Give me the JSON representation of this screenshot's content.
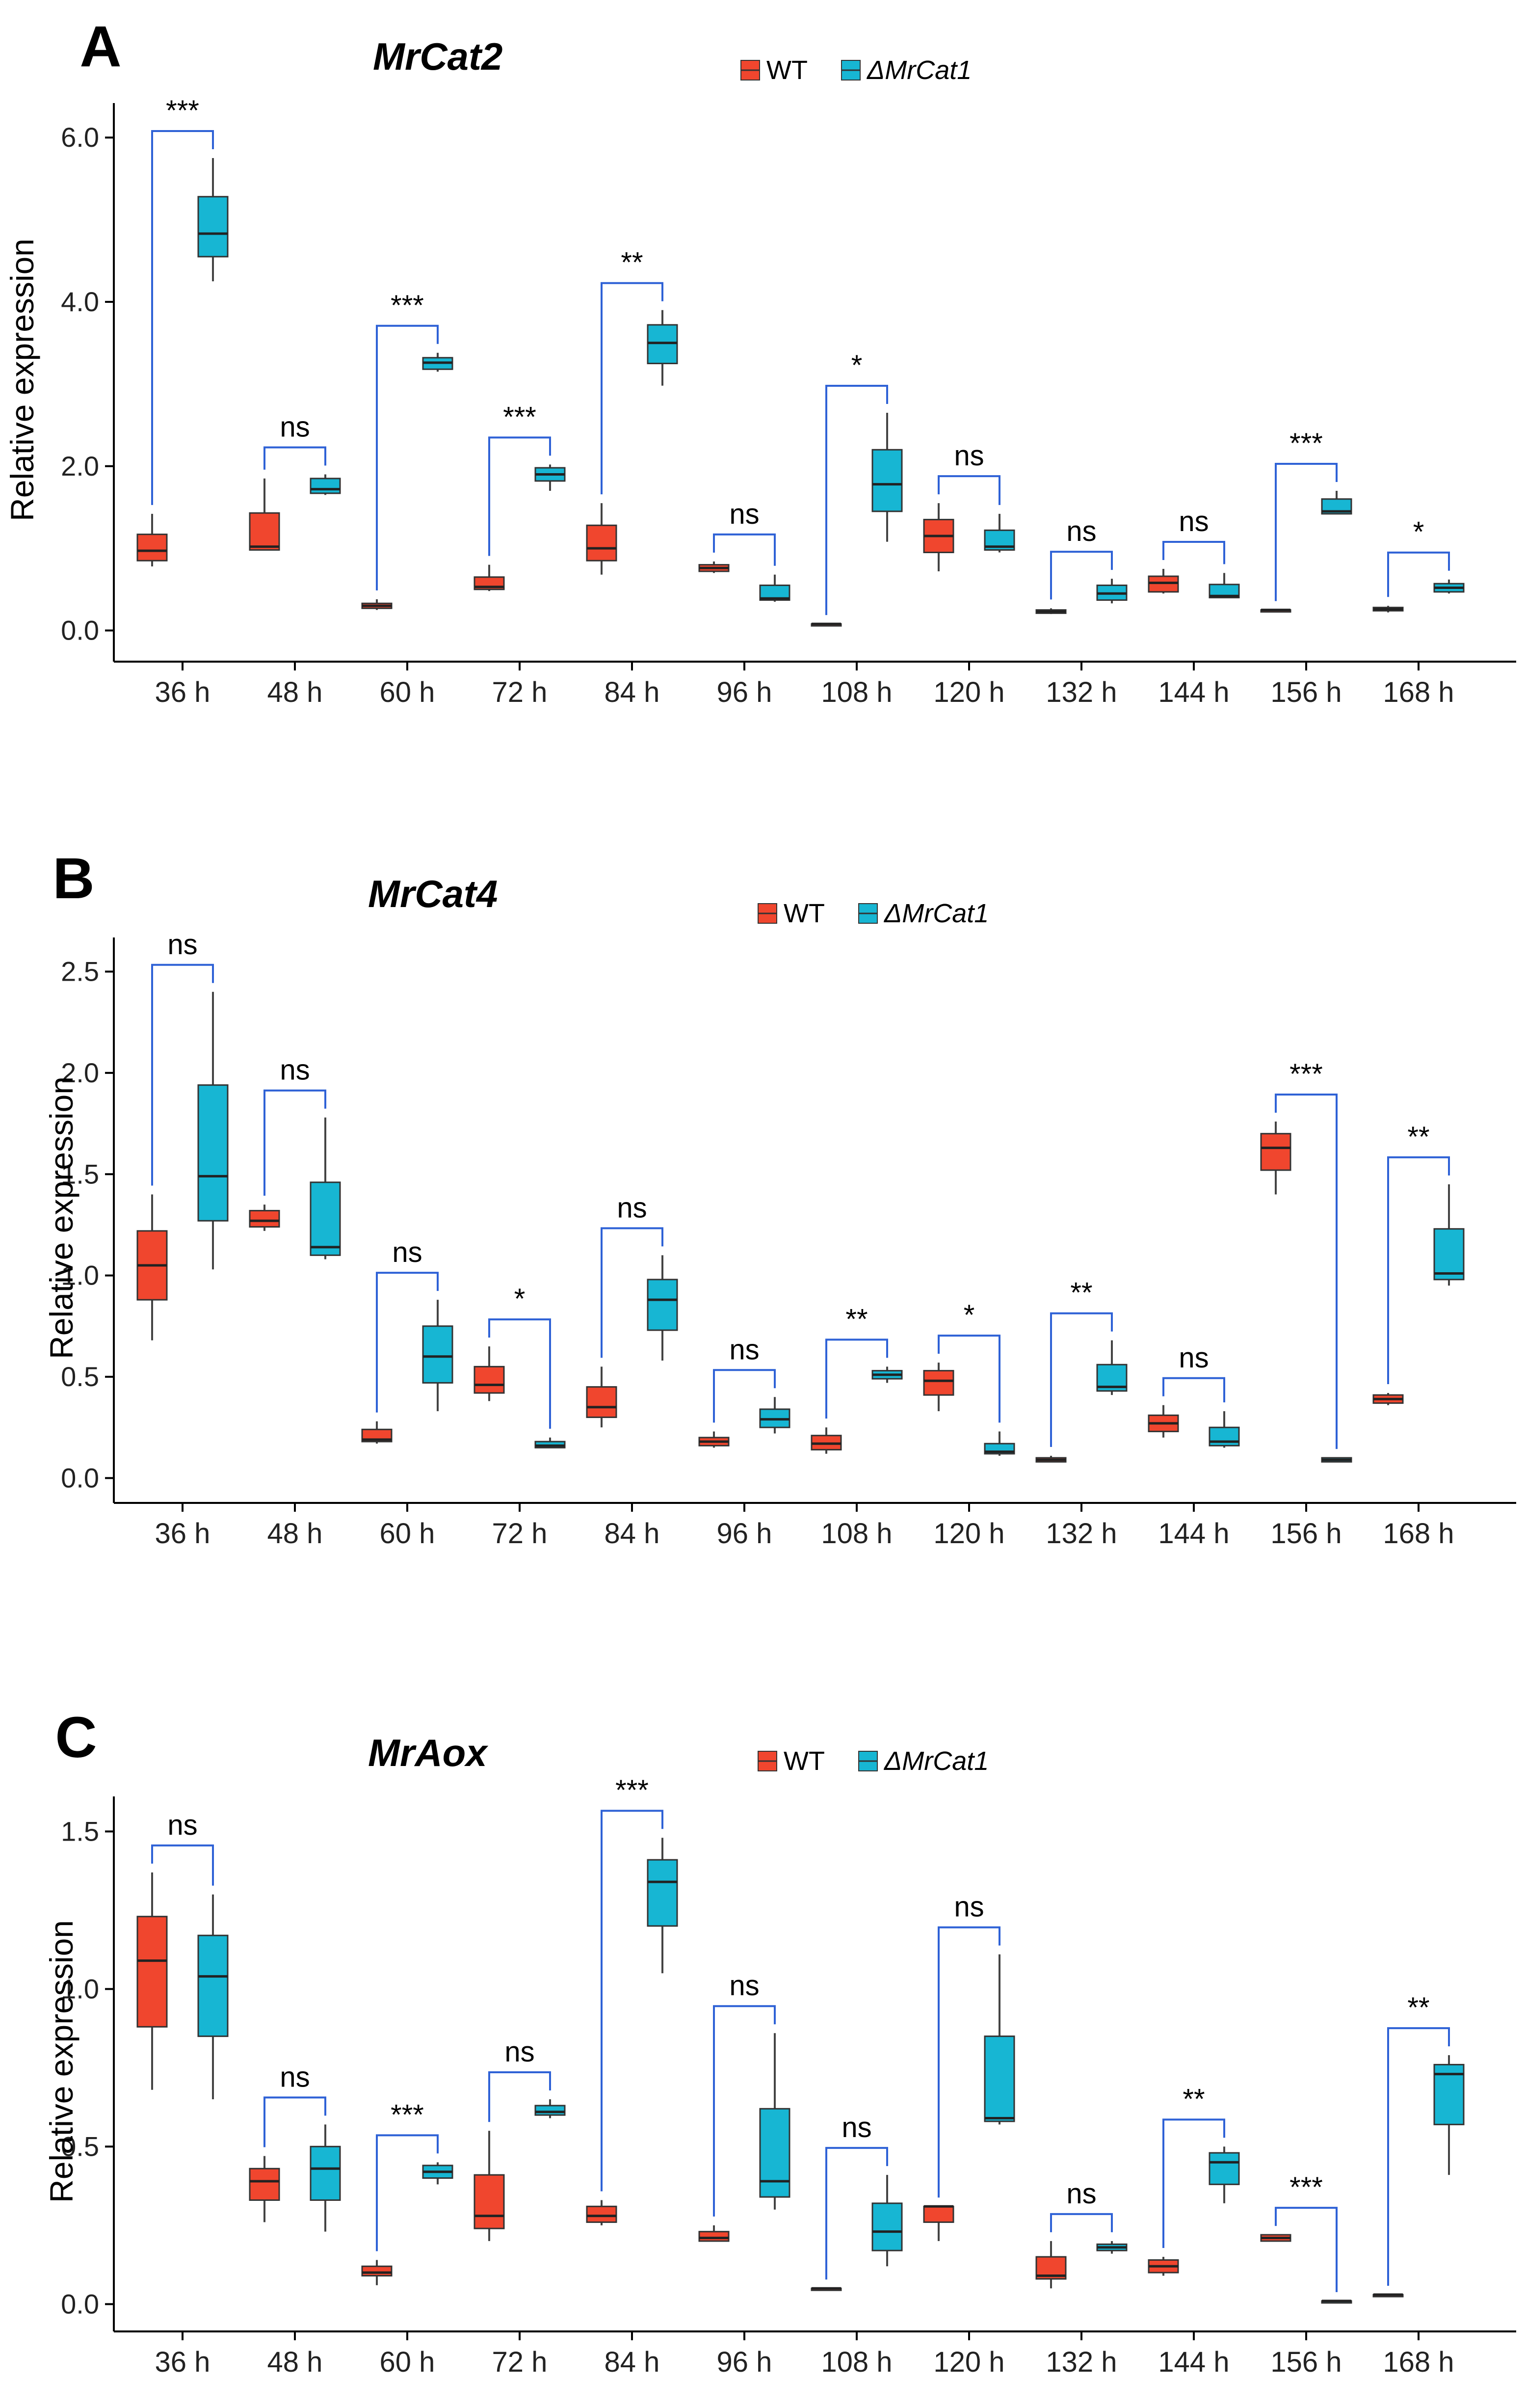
{
  "legend_labels": [
    "WT",
    "ΔMrCat1"
  ],
  "colors": {
    "wt": "#f0462e",
    "mut": "#17b6d3",
    "bracket": "#2f62d6",
    "axis": "#000000"
  },
  "chart_data": [
    {
      "type": "boxplot",
      "panel": "A",
      "title": "MrCat2",
      "xlabel": "",
      "ylabel": "Relative expression",
      "ylim": [
        -0.2,
        6.3
      ],
      "yticks": [
        0.0,
        2.0,
        4.0,
        6.0
      ],
      "ytick_labels": [
        "0.0",
        "2.0",
        "4.0",
        "6.0"
      ],
      "legend_position": "top-center",
      "categories": [
        "36 h",
        "48 h",
        "60 h",
        "72 h",
        "84 h",
        "96 h",
        "108 h",
        "120 h",
        "132 h",
        "144 h",
        "156 h",
        "168 h"
      ],
      "series": [
        {
          "name": "WT",
          "boxes": [
            {
              "min": 0.78,
              "q1": 0.85,
              "median": 0.97,
              "q3": 1.17,
              "max": 1.42
            },
            {
              "min": 0.98,
              "q1": 0.98,
              "median": 1.02,
              "q3": 1.43,
              "max": 1.85
            },
            {
              "min": 0.25,
              "q1": 0.27,
              "median": 0.3,
              "q3": 0.33,
              "max": 0.38
            },
            {
              "min": 0.48,
              "q1": 0.5,
              "median": 0.53,
              "q3": 0.65,
              "max": 0.8
            },
            {
              "min": 0.68,
              "q1": 0.85,
              "median": 1.0,
              "q3": 1.28,
              "max": 1.55
            },
            {
              "min": 0.7,
              "q1": 0.72,
              "median": 0.76,
              "q3": 0.8,
              "max": 0.84
            },
            {
              "min": 0.08,
              "q1": 0.08,
              "median": 0.08,
              "q3": 0.08,
              "max": 0.08
            },
            {
              "min": 0.72,
              "q1": 0.95,
              "median": 1.15,
              "q3": 1.35,
              "max": 1.55
            },
            {
              "min": 0.2,
              "q1": 0.21,
              "median": 0.23,
              "q3": 0.25,
              "max": 0.27
            },
            {
              "min": 0.45,
              "q1": 0.47,
              "median": 0.58,
              "q3": 0.66,
              "max": 0.75
            },
            {
              "min": 0.25,
              "q1": 0.25,
              "median": 0.25,
              "q3": 0.25,
              "max": 0.25
            },
            {
              "min": 0.22,
              "q1": 0.24,
              "median": 0.26,
              "q3": 0.28,
              "max": 0.3
            }
          ]
        },
        {
          "name": "ΔMrCat1",
          "boxes": [
            {
              "min": 4.25,
              "q1": 4.55,
              "median": 4.83,
              "q3": 5.28,
              "max": 5.75
            },
            {
              "min": 1.65,
              "q1": 1.67,
              "median": 1.72,
              "q3": 1.85,
              "max": 1.9
            },
            {
              "min": 3.15,
              "q1": 3.18,
              "median": 3.26,
              "q3": 3.32,
              "max": 3.38
            },
            {
              "min": 1.7,
              "q1": 1.82,
              "median": 1.9,
              "q3": 1.98,
              "max": 2.02
            },
            {
              "min": 2.98,
              "q1": 3.25,
              "median": 3.5,
              "q3": 3.72,
              "max": 3.9
            },
            {
              "min": 0.35,
              "q1": 0.37,
              "median": 0.39,
              "q3": 0.55,
              "max": 0.68
            },
            {
              "min": 1.08,
              "q1": 1.45,
              "median": 1.78,
              "q3": 2.2,
              "max": 2.65
            },
            {
              "min": 0.95,
              "q1": 0.98,
              "median": 1.02,
              "q3": 1.22,
              "max": 1.42
            },
            {
              "min": 0.33,
              "q1": 0.37,
              "median": 0.45,
              "q3": 0.55,
              "max": 0.63
            },
            {
              "min": 0.4,
              "q1": 0.4,
              "median": 0.42,
              "q3": 0.56,
              "max": 0.7
            },
            {
              "min": 1.42,
              "q1": 1.42,
              "median": 1.45,
              "q3": 1.6,
              "max": 1.7
            },
            {
              "min": 0.45,
              "q1": 0.47,
              "median": 0.52,
              "q3": 0.57,
              "max": 0.62
            }
          ]
        }
      ],
      "significance": [
        "***",
        "ns",
        "***",
        "***",
        "**",
        "ns",
        "*",
        "ns",
        "ns",
        "ns",
        "***",
        "*"
      ]
    },
    {
      "type": "boxplot",
      "panel": "B",
      "title": "MrCat4",
      "xlabel": "",
      "ylabel": "Relative expression",
      "ylim": [
        -0.05,
        2.62
      ],
      "yticks": [
        0.0,
        0.5,
        1.0,
        1.5,
        2.0,
        2.5
      ],
      "ytick_labels": [
        "0.0",
        "0.5",
        "1.0",
        "1.5",
        "2.0",
        "2.5"
      ],
      "legend_position": "top-center",
      "categories": [
        "36 h",
        "48 h",
        "60 h",
        "72 h",
        "84 h",
        "96 h",
        "108 h",
        "120 h",
        "132 h",
        "144 h",
        "156 h",
        "168 h"
      ],
      "series": [
        {
          "name": "WT",
          "boxes": [
            {
              "min": 0.68,
              "q1": 0.88,
              "median": 1.05,
              "q3": 1.22,
              "max": 1.4
            },
            {
              "min": 1.22,
              "q1": 1.24,
              "median": 1.27,
              "q3": 1.32,
              "max": 1.35
            },
            {
              "min": 0.17,
              "q1": 0.18,
              "median": 0.19,
              "q3": 0.24,
              "max": 0.28
            },
            {
              "min": 0.38,
              "q1": 0.42,
              "median": 0.46,
              "q3": 0.55,
              "max": 0.65
            },
            {
              "min": 0.25,
              "q1": 0.3,
              "median": 0.35,
              "q3": 0.45,
              "max": 0.55
            },
            {
              "min": 0.15,
              "q1": 0.16,
              "median": 0.18,
              "q3": 0.2,
              "max": 0.23
            },
            {
              "min": 0.12,
              "q1": 0.14,
              "median": 0.17,
              "q3": 0.21,
              "max": 0.25
            },
            {
              "min": 0.33,
              "q1": 0.41,
              "median": 0.48,
              "q3": 0.53,
              "max": 0.57
            },
            {
              "min": 0.08,
              "q1": 0.08,
              "median": 0.09,
              "q3": 0.1,
              "max": 0.11
            },
            {
              "min": 0.2,
              "q1": 0.23,
              "median": 0.27,
              "q3": 0.31,
              "max": 0.36
            },
            {
              "min": 1.4,
              "q1": 1.52,
              "median": 1.63,
              "q3": 1.7,
              "max": 1.76
            },
            {
              "min": 0.36,
              "q1": 0.37,
              "median": 0.39,
              "q3": 0.41,
              "max": 0.42
            }
          ]
        },
        {
          "name": "ΔMrCat1",
          "boxes": [
            {
              "min": 1.03,
              "q1": 1.27,
              "median": 1.49,
              "q3": 1.94,
              "max": 2.4
            },
            {
              "min": 1.08,
              "q1": 1.1,
              "median": 1.14,
              "q3": 1.46,
              "max": 1.78
            },
            {
              "min": 0.33,
              "q1": 0.47,
              "median": 0.6,
              "q3": 0.75,
              "max": 0.88
            },
            {
              "min": 0.15,
              "q1": 0.15,
              "median": 0.16,
              "q3": 0.18,
              "max": 0.2
            },
            {
              "min": 0.58,
              "q1": 0.73,
              "median": 0.88,
              "q3": 0.98,
              "max": 1.1
            },
            {
              "min": 0.22,
              "q1": 0.25,
              "median": 0.29,
              "q3": 0.34,
              "max": 0.4
            },
            {
              "min": 0.47,
              "q1": 0.49,
              "median": 0.51,
              "q3": 0.53,
              "max": 0.55
            },
            {
              "min": 0.11,
              "q1": 0.12,
              "median": 0.13,
              "q3": 0.17,
              "max": 0.23
            },
            {
              "min": 0.41,
              "q1": 0.43,
              "median": 0.45,
              "q3": 0.56,
              "max": 0.68
            },
            {
              "min": 0.15,
              "q1": 0.16,
              "median": 0.18,
              "q3": 0.25,
              "max": 0.33
            },
            {
              "min": 0.08,
              "q1": 0.08,
              "median": 0.09,
              "q3": 0.1,
              "max": 0.1
            },
            {
              "min": 0.95,
              "q1": 0.98,
              "median": 1.01,
              "q3": 1.23,
              "max": 1.45
            }
          ]
        }
      ],
      "significance": [
        "ns",
        "ns",
        "ns",
        "*",
        "ns",
        "ns",
        "**",
        "*",
        "**",
        "ns",
        "***",
        "**"
      ]
    },
    {
      "type": "boxplot",
      "panel": "C",
      "title": "MrAox",
      "xlabel": "",
      "ylabel": "Relative expression",
      "ylim": [
        -0.04,
        1.58
      ],
      "yticks": [
        0.0,
        0.5,
        1.0,
        1.5
      ],
      "ytick_labels": [
        "0.0",
        "0.5",
        "1.0",
        "1.5"
      ],
      "legend_position": "top-center",
      "categories": [
        "36 h",
        "48 h",
        "60 h",
        "72 h",
        "84 h",
        "96 h",
        "108 h",
        "120 h",
        "132 h",
        "144 h",
        "156 h",
        "168 h"
      ],
      "series": [
        {
          "name": "WT",
          "boxes": [
            {
              "min": 0.68,
              "q1": 0.88,
              "median": 1.09,
              "q3": 1.23,
              "max": 1.37
            },
            {
              "min": 0.26,
              "q1": 0.33,
              "median": 0.39,
              "q3": 0.43,
              "max": 0.47
            },
            {
              "min": 0.06,
              "q1": 0.09,
              "median": 0.1,
              "q3": 0.12,
              "max": 0.14
            },
            {
              "min": 0.2,
              "q1": 0.24,
              "median": 0.28,
              "q3": 0.41,
              "max": 0.55
            },
            {
              "min": 0.25,
              "q1": 0.26,
              "median": 0.28,
              "q3": 0.31,
              "max": 0.33
            },
            {
              "min": 0.2,
              "q1": 0.2,
              "median": 0.21,
              "q3": 0.23,
              "max": 0.25
            },
            {
              "min": 0.05,
              "q1": 0.05,
              "median": 0.05,
              "q3": 0.05,
              "max": 0.05
            },
            {
              "min": 0.2,
              "q1": 0.26,
              "median": 0.31,
              "q3": 0.31,
              "max": 0.31
            },
            {
              "min": 0.05,
              "q1": 0.08,
              "median": 0.09,
              "q3": 0.15,
              "max": 0.2
            },
            {
              "min": 0.09,
              "q1": 0.1,
              "median": 0.12,
              "q3": 0.14,
              "max": 0.15
            },
            {
              "min": 0.2,
              "q1": 0.2,
              "median": 0.21,
              "q3": 0.22,
              "max": 0.22
            },
            {
              "min": 0.03,
              "q1": 0.03,
              "median": 0.03,
              "q3": 0.03,
              "max": 0.03
            }
          ]
        },
        {
          "name": "ΔMrCat1",
          "boxes": [
            {
              "min": 0.65,
              "q1": 0.85,
              "median": 1.04,
              "q3": 1.17,
              "max": 1.3
            },
            {
              "min": 0.23,
              "q1": 0.33,
              "median": 0.43,
              "q3": 0.5,
              "max": 0.57
            },
            {
              "min": 0.38,
              "q1": 0.4,
              "median": 0.42,
              "q3": 0.44,
              "max": 0.45
            },
            {
              "min": 0.59,
              "q1": 0.6,
              "median": 0.61,
              "q3": 0.63,
              "max": 0.65
            },
            {
              "min": 1.05,
              "q1": 1.2,
              "median": 1.34,
              "q3": 1.41,
              "max": 1.48
            },
            {
              "min": 0.3,
              "q1": 0.34,
              "median": 0.39,
              "q3": 0.62,
              "max": 0.86
            },
            {
              "min": 0.12,
              "q1": 0.17,
              "median": 0.23,
              "q3": 0.32,
              "max": 0.41
            },
            {
              "min": 0.57,
              "q1": 0.58,
              "median": 0.59,
              "q3": 0.85,
              "max": 1.11
            },
            {
              "min": 0.16,
              "q1": 0.17,
              "median": 0.18,
              "q3": 0.19,
              "max": 0.2
            },
            {
              "min": 0.32,
              "q1": 0.38,
              "median": 0.45,
              "q3": 0.48,
              "max": 0.5
            },
            {
              "min": 0.01,
              "q1": 0.01,
              "median": 0.01,
              "q3": 0.01,
              "max": 0.01
            },
            {
              "min": 0.41,
              "q1": 0.57,
              "median": 0.73,
              "q3": 0.76,
              "max": 0.79
            }
          ]
        }
      ],
      "significance": [
        "ns",
        "ns",
        "***",
        "ns",
        "***",
        "ns",
        "ns",
        "ns",
        "ns",
        "**",
        "***",
        "**"
      ]
    }
  ]
}
